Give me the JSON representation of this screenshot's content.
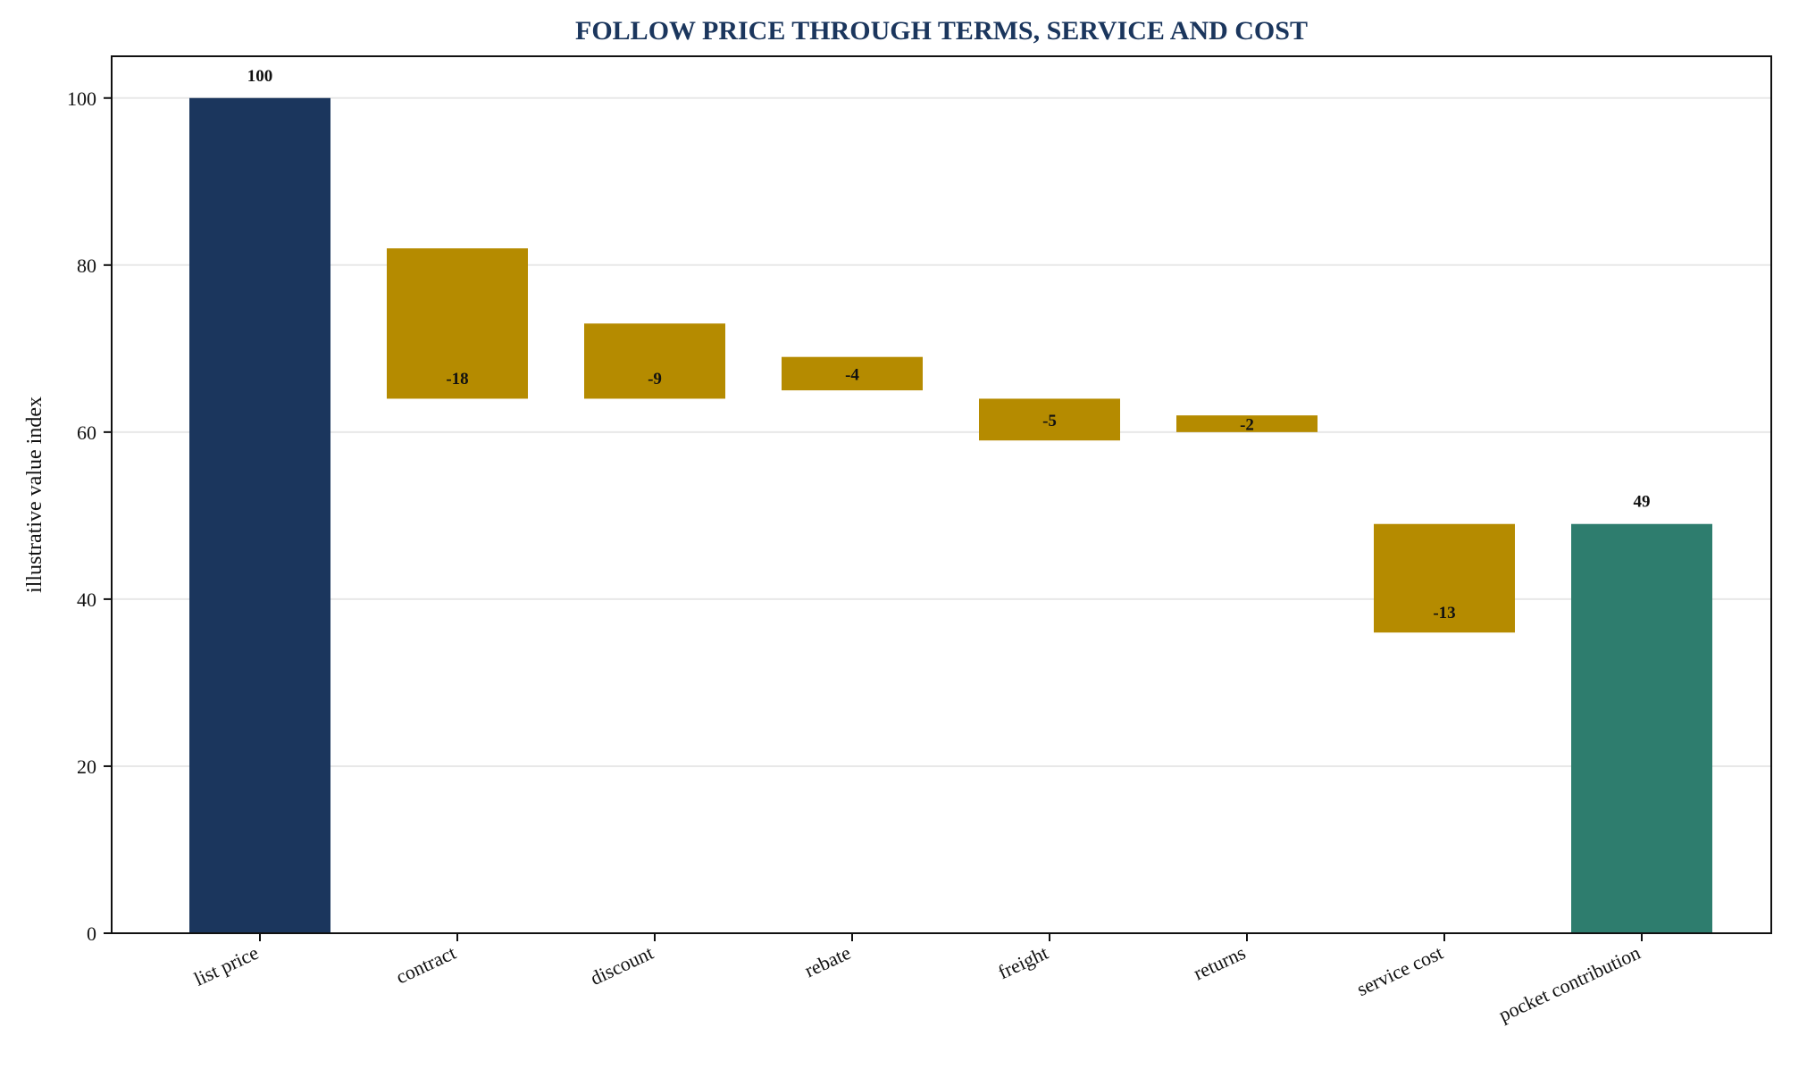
{
  "chart_data": {
    "type": "bar",
    "subtype": "waterfall",
    "title": "FOLLOW PRICE THROUGH TERMS, SERVICE AND COST",
    "xlabel": "",
    "ylabel": "illustrative value index",
    "ylim": [
      0,
      105
    ],
    "yticks": [
      0,
      20,
      40,
      60,
      80,
      100
    ],
    "grid": "horizontal",
    "categories": [
      "list price",
      "contract",
      "discount",
      "rebate",
      "freight",
      "returns",
      "service cost",
      "pocket contribution"
    ],
    "values": [
      100,
      -18,
      -9,
      -4,
      -5,
      -2,
      -13,
      49
    ],
    "bar_base": [
      0,
      64,
      64,
      65,
      59,
      60,
      36,
      0
    ],
    "bar_top": [
      100,
      82,
      73,
      69,
      64,
      62,
      49,
      49
    ],
    "value_labels": [
      "100",
      "-18",
      "-9",
      "-4",
      "-5",
      "-2",
      "-13",
      "49"
    ],
    "bar_kinds": [
      "total",
      "deduction",
      "deduction",
      "deduction",
      "deduction",
      "deduction",
      "deduction",
      "total"
    ],
    "colors": {
      "title": "#1b365d",
      "start_total": "#1b365d",
      "deduction": "#b58b00",
      "end_total": "#2e7d6e"
    }
  }
}
